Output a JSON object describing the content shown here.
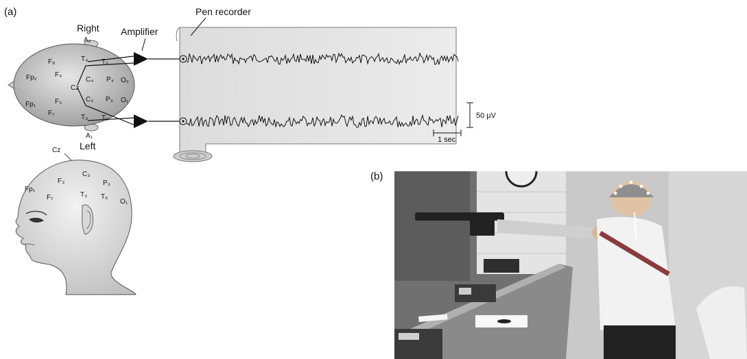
{
  "panel_a": {
    "label": "(a)",
    "pen_recorder_label": "Pen recorder",
    "amplifier_label": "Amplifier",
    "right_label": "Right",
    "left_label": "Left",
    "scale_amplitude": "50 μV",
    "scale_time": "1 sec",
    "top_view_electrodes": {
      "A2": "A₂",
      "T4": "T₄",
      "T6": "T₆",
      "F8": "F₈",
      "F4": "F₄",
      "Fp2": "Fp₂",
      "C4": "C₄",
      "P4": "P₄",
      "O2": "O₂",
      "Cz": "Cz",
      "Fp1": "Fp₁",
      "F3": "F₃",
      "C3": "C₃",
      "P3": "P₃",
      "O1": "O₁",
      "F7": "F₇",
      "T3": "T₃",
      "T5": "T₅",
      "A1": "A₁"
    },
    "side_view_electrodes": {
      "Cz": "Cz",
      "C3": "C₃",
      "F3": "F₃",
      "P3": "P₃",
      "Fp1": "Fp₁",
      "F7": "F₇",
      "T3": "T₃",
      "T5": "T₅",
      "O1": "O₁"
    }
  },
  "panel_b": {
    "label": "(b)"
  }
}
